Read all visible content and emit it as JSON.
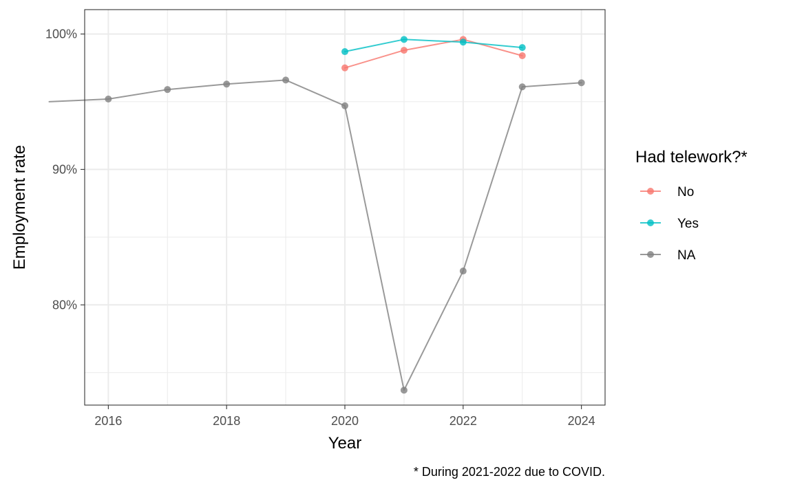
{
  "chart_data": {
    "type": "line",
    "title": "",
    "xlabel": "Year",
    "ylabel": "Employment rate",
    "caption": "* During 2021-2022 due to COVID.",
    "xlim": [
      2015.6,
      2024.4
    ],
    "ylim": [
      72.6,
      101.8
    ],
    "x_ticks": [
      {
        "value": 2016,
        "label": "2016"
      },
      {
        "value": 2018,
        "label": "2018"
      },
      {
        "value": 2020,
        "label": "2020"
      },
      {
        "value": 2022,
        "label": "2022"
      },
      {
        "value": 2024,
        "label": "2024"
      }
    ],
    "x_minor_ticks": [
      2017,
      2019,
      2021,
      2023
    ],
    "y_ticks": [
      {
        "value": 80,
        "label": "80%"
      },
      {
        "value": 90,
        "label": "90%"
      },
      {
        "value": 100,
        "label": "100%"
      }
    ],
    "y_minor_ticks": [
      75,
      85,
      95
    ],
    "grid": true,
    "legend": {
      "title": "Had telework?*",
      "position": "right"
    },
    "series": [
      {
        "name": "No",
        "color": "#F8766D",
        "x": [
          2020,
          2021,
          2022,
          2023
        ],
        "y": [
          97.5,
          98.8,
          99.6,
          98.4
        ]
      },
      {
        "name": "Yes",
        "color": "#00BFC4",
        "x": [
          2020,
          2021,
          2022,
          2023
        ],
        "y": [
          98.7,
          99.6,
          99.4,
          99.0
        ]
      },
      {
        "name": "NA",
        "color": "#7F7F7F",
        "x": [
          2015,
          2016,
          2017,
          2018,
          2019,
          2020,
          2021,
          2022,
          2023,
          2024
        ],
        "y": [
          95.0,
          95.2,
          95.9,
          96.3,
          96.6,
          94.7,
          73.7,
          82.5,
          96.1,
          96.4
        ]
      }
    ]
  }
}
